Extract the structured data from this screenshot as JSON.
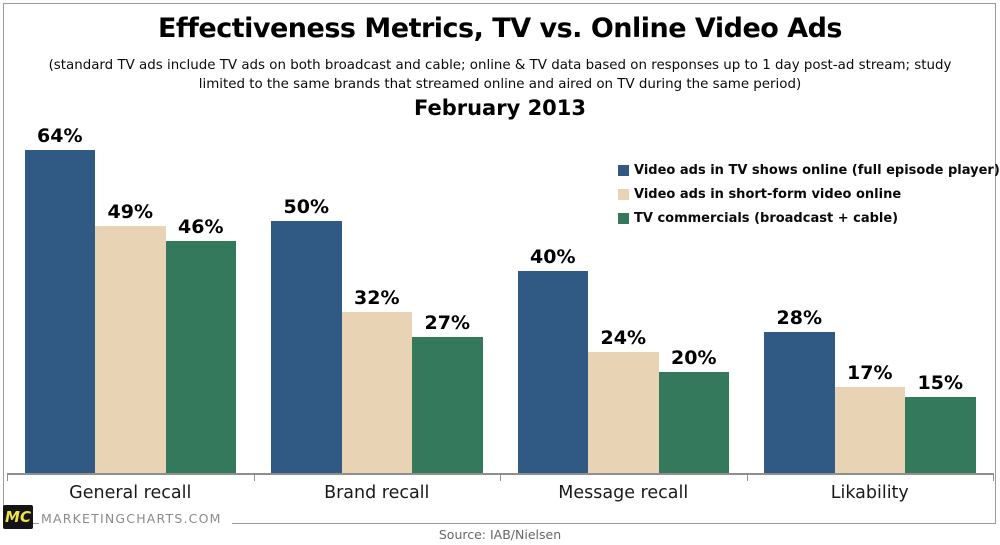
{
  "header": {
    "title": "Effectiveness Metrics, TV vs. Online Video Ads",
    "subtitle": "(standard TV ads include TV ads on both broadcast and cable; online & TV data based on responses up to 1 day post-ad stream; study limited to the same brands that streamed online and aired on TV during the same period)",
    "period": "February 2013"
  },
  "chart_data": {
    "type": "bar",
    "title": "Effectiveness Metrics, TV vs. Online Video Ads",
    "categories": [
      "General recall",
      "Brand recall",
      "Message recall",
      "Likability"
    ],
    "series": [
      {
        "name": "Video ads in TV shows online (full episode player)",
        "color": "#305a84",
        "values": [
          64,
          50,
          40,
          28
        ]
      },
      {
        "name": "Video ads in short-form video online",
        "color": "#e8d3b4",
        "values": [
          49,
          32,
          24,
          17
        ]
      },
      {
        "name": "TV commercials (broadcast + cable)",
        "color": "#35795d",
        "values": [
          46,
          27,
          20,
          15
        ]
      }
    ],
    "value_suffix": "%",
    "ylim": [
      0,
      70
    ],
    "grid": false,
    "legend_position": "top-right",
    "xlabel": "",
    "ylabel": "",
    "axis_color": "#8f8f8f"
  },
  "footer": {
    "logo": "MC",
    "site": "MARKETINGCHARTS.COM",
    "source": "Source: IAB/Nielsen"
  }
}
